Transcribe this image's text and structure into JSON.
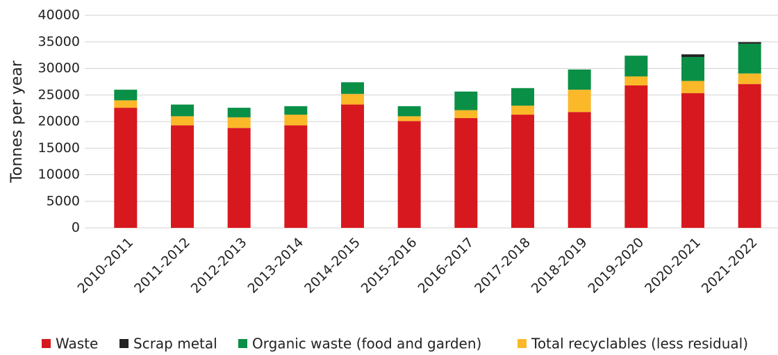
{
  "chart_data": {
    "type": "stacked-bar",
    "y_label": "Tonnes per year",
    "categories": [
      "2010-2011",
      "2011-2012",
      "2012-2013",
      "2013-2014",
      "2014-2015",
      "2015-2016",
      "2016-2017",
      "2017-2018",
      "2018-2019",
      "2019-2020",
      "2020-2021",
      "2021-2022"
    ],
    "series": [
      {
        "name": "Waste",
        "color": "#d7191f",
        "values": [
          22600,
          19300,
          18800,
          19300,
          23200,
          20100,
          20650,
          21300,
          21800,
          26800,
          25350,
          27050
        ]
      },
      {
        "name": "Scrap metal",
        "color": "#222222",
        "values": [
          0,
          0,
          0,
          0,
          0,
          0,
          0,
          0,
          0,
          0,
          500,
          300
        ]
      },
      {
        "name": "Organic waste (food and garden)",
        "color": "#0a8f47",
        "values": [
          2000,
          2200,
          1800,
          1600,
          2200,
          1900,
          3500,
          3300,
          3800,
          3900,
          4500,
          5600
        ]
      },
      {
        "name": "Total recyclables (less residual)",
        "color": "#fbb829",
        "values": [
          1400,
          1700,
          2000,
          2000,
          2000,
          900,
          1500,
          1700,
          4200,
          1700,
          2300,
          2000
        ]
      }
    ],
    "ylim": [
      0,
      40000
    ],
    "yticks": [
      0,
      5000,
      10000,
      15000,
      20000,
      25000,
      30000,
      35000,
      40000
    ],
    "grid": true
  }
}
